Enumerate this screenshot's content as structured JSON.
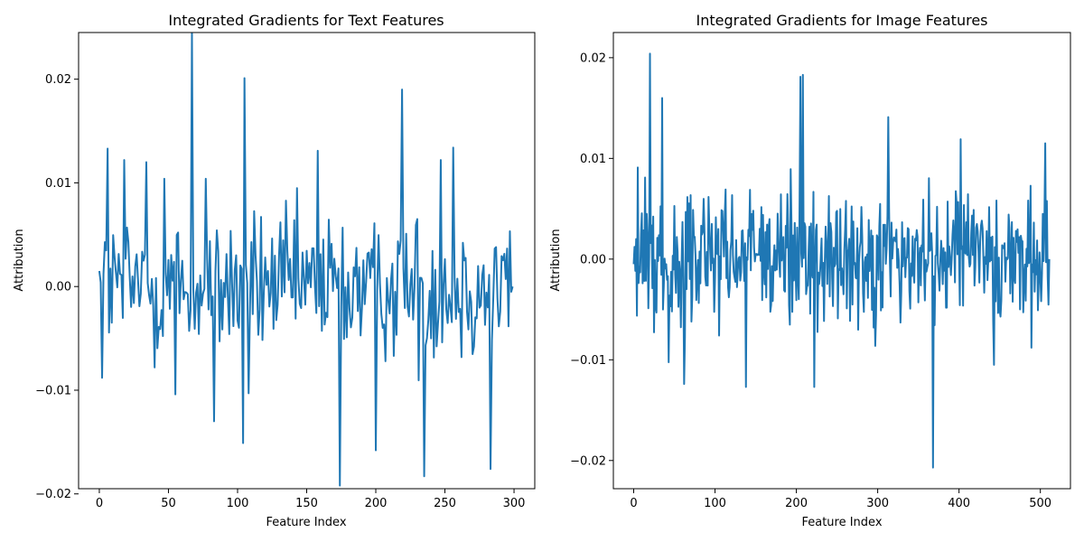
{
  "chart_data": [
    {
      "type": "line",
      "title": "Integrated Gradients for Text Features",
      "xlabel": "Feature Index",
      "ylabel": "Attribution",
      "xlim": [
        -15,
        315
      ],
      "ylim": [
        -0.0195,
        0.0245
      ],
      "xticks": [
        0,
        50,
        100,
        150,
        200,
        250,
        300
      ],
      "yticks": [
        -0.02,
        -0.01,
        0.0,
        0.01,
        0.02
      ],
      "yticklabels": [
        "−0.02",
        "−0.01",
        "0.00",
        "0.01",
        "0.02"
      ],
      "grid": false,
      "color": "#1f77b4",
      "n_points": 300,
      "peaks": [
        [
          0,
          0.0015
        ],
        [
          2,
          -0.0088
        ],
        [
          6,
          0.0133
        ],
        [
          18,
          0.0122
        ],
        [
          34,
          0.012
        ],
        [
          40,
          -0.0078
        ],
        [
          47,
          0.0104
        ],
        [
          55,
          -0.0104
        ],
        [
          67,
          0.0244
        ],
        [
          77,
          0.0104
        ],
        [
          83,
          -0.013
        ],
        [
          105,
          0.0201
        ],
        [
          104,
          -0.0151
        ],
        [
          108,
          -0.0103
        ],
        [
          158,
          0.0131
        ],
        [
          174,
          -0.0192
        ],
        [
          200,
          -0.0158
        ],
        [
          219,
          0.019
        ],
        [
          235,
          -0.0183
        ],
        [
          247,
          0.0122
        ],
        [
          256,
          0.0134
        ],
        [
          283,
          -0.0176
        ],
        [
          299,
          0.0
        ]
      ]
    },
    {
      "type": "line",
      "title": "Integrated Gradients for Image Features",
      "xlabel": "Feature Index",
      "ylabel": "Attribution",
      "xlim": [
        -25,
        537
      ],
      "ylim": [
        -0.0228,
        0.0225
      ],
      "xticks": [
        0,
        100,
        200,
        300,
        400,
        500
      ],
      "yticks": [
        -0.02,
        -0.01,
        0.0,
        0.01,
        0.02
      ],
      "yticklabels": [
        "−0.02",
        "−0.01",
        "0.00",
        "0.01",
        "0.02"
      ],
      "grid": false,
      "color": "#1f77b4",
      "n_points": 512,
      "peaks": [
        [
          0,
          -0.0005
        ],
        [
          5,
          0.0091
        ],
        [
          20,
          0.0204
        ],
        [
          35,
          0.016
        ],
        [
          62,
          -0.0124
        ],
        [
          138,
          -0.0127
        ],
        [
          205,
          0.0181
        ],
        [
          208,
          0.0183
        ],
        [
          222,
          -0.0127
        ],
        [
          313,
          0.0141
        ],
        [
          368,
          -0.0207
        ],
        [
          402,
          0.0119
        ],
        [
          443,
          -0.0105
        ],
        [
          506,
          0.0115
        ],
        [
          511,
          0.0
        ]
      ]
    }
  ]
}
